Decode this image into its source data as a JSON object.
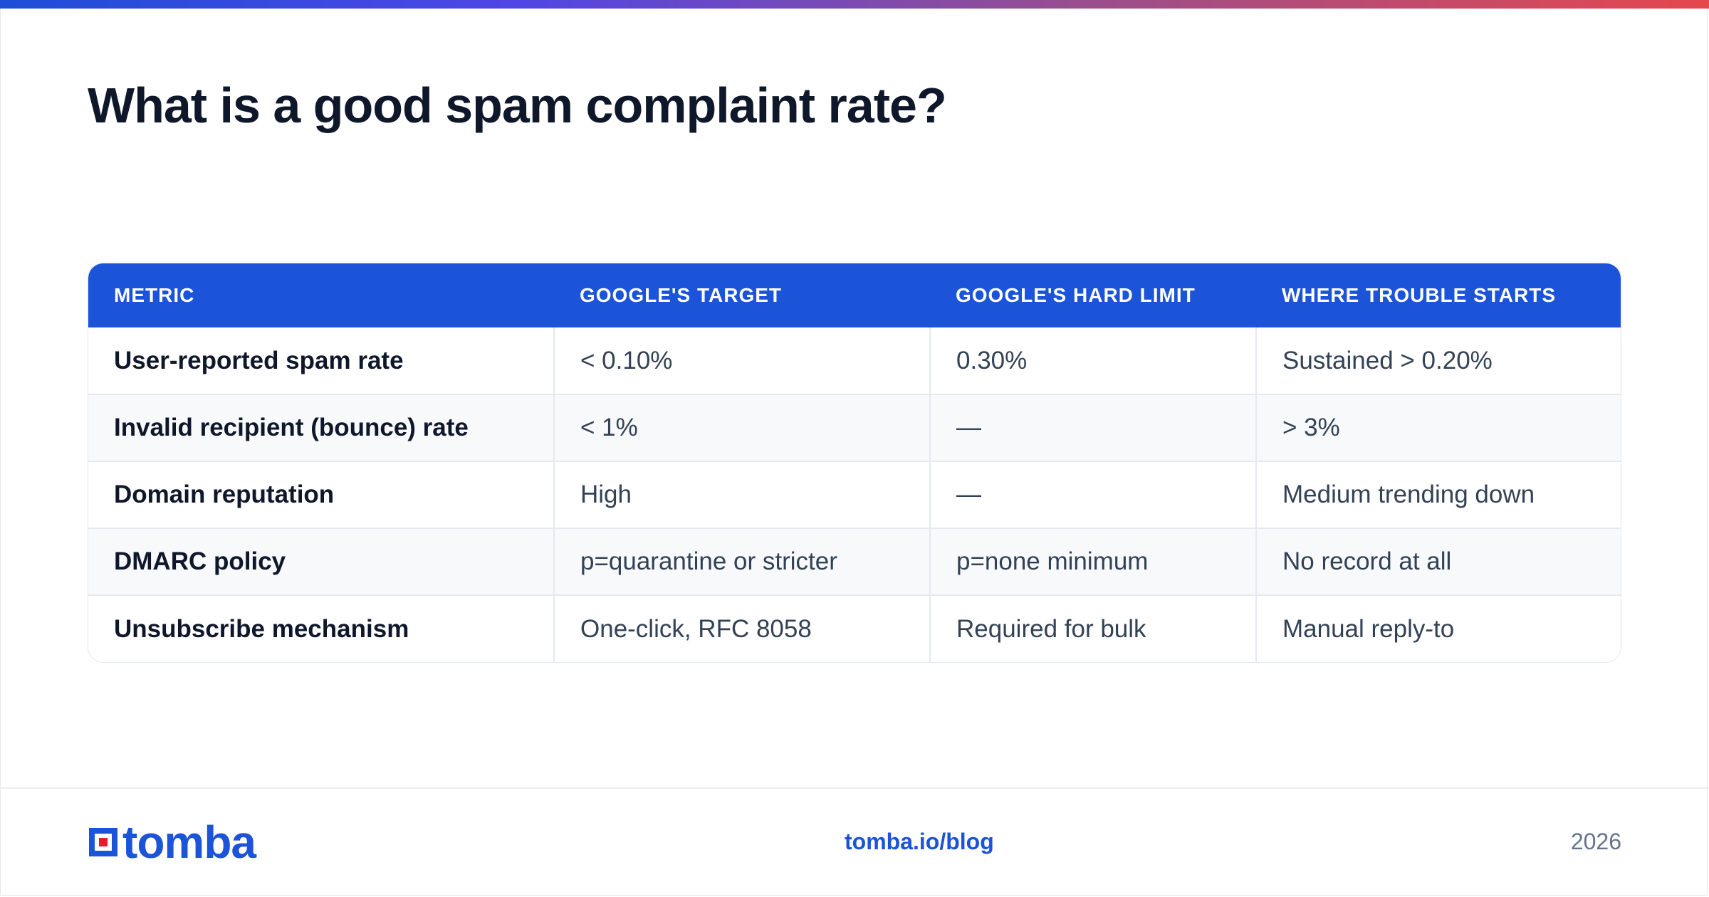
{
  "title": "What is a good spam complaint rate?",
  "colors": {
    "accent": "#1b53d9",
    "title": "#0f172a",
    "body_text": "#334155",
    "muted": "#64748b",
    "gradient": [
      "#1d4ed8",
      "#4f46e5",
      "#9d4e8a",
      "#e5484d"
    ]
  },
  "table": {
    "headers": [
      "METRIC",
      "GOOGLE'S TARGET",
      "GOOGLE'S HARD LIMIT",
      "WHERE TROUBLE STARTS"
    ],
    "rows": [
      [
        "User-reported spam rate",
        "< 0.10%",
        "0.30%",
        "Sustained > 0.20%"
      ],
      [
        "Invalid recipient (bounce) rate",
        "< 1%",
        "—",
        "> 3%"
      ],
      [
        "Domain reputation",
        "High",
        "—",
        "Medium trending down"
      ],
      [
        "DMARC policy",
        "p=quarantine or stricter",
        "p=none minimum",
        "No record at all"
      ],
      [
        "Unsubscribe mechanism",
        "One-click, RFC 8058",
        "Required for bulk",
        "Manual reply-to"
      ]
    ]
  },
  "footer": {
    "logo_text": "tomba",
    "logo_icon": "tomba-logo-icon",
    "link": "tomba.io/blog",
    "year": "2026"
  }
}
